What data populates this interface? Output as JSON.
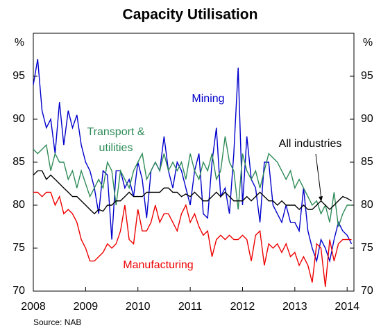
{
  "chart_data": {
    "type": "line",
    "title": "Capacity Utilisation",
    "y_label": "%",
    "source": "Source: NAB",
    "xlim": [
      2008,
      2014.13
    ],
    "xticks": [
      2008,
      2009,
      2010,
      2011,
      2012,
      2013,
      2014
    ],
    "ylim": [
      70,
      100
    ],
    "yticks": [
      70,
      75,
      80,
      85,
      90,
      95
    ],
    "x": [
      2008,
      2008.083,
      2008.167,
      2008.25,
      2008.333,
      2008.417,
      2008.5,
      2008.583,
      2008.667,
      2008.75,
      2008.833,
      2008.917,
      2009,
      2009.083,
      2009.167,
      2009.25,
      2009.333,
      2009.417,
      2009.5,
      2009.583,
      2009.667,
      2009.75,
      2009.833,
      2009.917,
      2010,
      2010.083,
      2010.167,
      2010.25,
      2010.333,
      2010.417,
      2010.5,
      2010.583,
      2010.667,
      2010.75,
      2010.833,
      2010.917,
      2011,
      2011.083,
      2011.167,
      2011.25,
      2011.333,
      2011.417,
      2011.5,
      2011.583,
      2011.667,
      2011.75,
      2011.833,
      2011.917,
      2012,
      2012.083,
      2012.167,
      2012.25,
      2012.333,
      2012.417,
      2012.5,
      2012.583,
      2012.667,
      2012.75,
      2012.833,
      2012.917,
      2013,
      2013.083,
      2013.167,
      2013.25,
      2013.333,
      2013.417,
      2013.5,
      2013.583,
      2013.667,
      2013.75,
      2013.833,
      2013.917,
      2014,
      2014.083
    ],
    "series": [
      {
        "name": "Mining",
        "color": "#0000cc",
        "values": [
          94,
          97,
          91,
          89,
          90,
          86,
          92,
          87,
          91,
          89,
          90.5,
          87,
          85,
          84,
          82,
          79,
          84,
          83.5,
          76,
          84,
          84,
          82,
          83,
          81,
          85,
          83,
          78.5,
          84,
          85,
          84,
          88,
          84,
          82,
          85,
          84,
          82,
          80,
          84,
          86,
          79,
          78.5,
          85,
          89,
          81,
          82,
          79,
          86,
          96,
          80,
          88,
          83,
          82,
          78,
          85,
          85,
          80,
          79,
          78,
          80,
          78,
          78,
          77,
          82,
          77,
          75,
          73.5,
          76,
          75,
          73.5,
          76,
          78,
          77,
          76.5,
          75.5
        ]
      },
      {
        "name": "Transport & utilities",
        "color": "#2e8b57",
        "values": [
          86.5,
          86,
          86.5,
          87,
          84,
          86,
          85,
          85,
          83,
          84,
          82,
          84,
          82.5,
          81,
          82,
          83,
          82,
          85,
          84,
          80,
          84,
          83,
          82,
          84,
          85,
          86,
          83,
          84,
          85,
          84,
          86,
          84,
          85,
          84,
          85,
          83,
          86,
          84,
          83,
          85,
          84,
          86,
          83,
          84,
          88,
          85,
          84,
          79.5,
          86,
          84,
          83,
          84,
          82,
          84,
          86,
          85.5,
          85,
          84,
          83,
          84,
          82,
          83,
          82,
          81,
          80,
          80.5,
          79,
          80,
          78,
          81.5,
          77.5,
          79,
          80,
          80
        ]
      },
      {
        "name": "All industries",
        "color": "#000000",
        "values": [
          83.5,
          84,
          84,
          83,
          83.5,
          83,
          82.5,
          82,
          81.5,
          81,
          81,
          80.5,
          80,
          79.5,
          79,
          79.5,
          79.3,
          80,
          80,
          80.5,
          80.5,
          81,
          81.5,
          81,
          81,
          81,
          81.5,
          81.5,
          81.5,
          81.5,
          82,
          82,
          81.5,
          81.5,
          81,
          81.3,
          81,
          81.5,
          81,
          80.5,
          80.5,
          81,
          81.5,
          81,
          81.5,
          81,
          80.5,
          80.5,
          80.5,
          81,
          80.5,
          81,
          81.5,
          81,
          80.5,
          80.5,
          80,
          80.5,
          80,
          80,
          80,
          79.5,
          80,
          79.5,
          79.5,
          80,
          80.5,
          80,
          79.5,
          80,
          80.5,
          81,
          80.8,
          80.5
        ]
      },
      {
        "name": "Manufacturing",
        "color": "#ee0000",
        "values": [
          81.5,
          81.5,
          81,
          81.5,
          81.5,
          80,
          81,
          79,
          79.5,
          79,
          78,
          76,
          75,
          73.5,
          73.5,
          74,
          74.5,
          75.5,
          75,
          75.5,
          77,
          80,
          76,
          75.5,
          79.5,
          77,
          77,
          78,
          80,
          78,
          79,
          79,
          78,
          77,
          79,
          80,
          78,
          79,
          77.5,
          76.5,
          77,
          74,
          76,
          76.5,
          76,
          76.5,
          76,
          76,
          76.5,
          76,
          73.5,
          76.5,
          77,
          73,
          75.5,
          75,
          75.5,
          74.5,
          75.5,
          74,
          74.5,
          73,
          74,
          73,
          71,
          75.5,
          75,
          70.5,
          76,
          73.5,
          75.5,
          76,
          76,
          76
        ]
      }
    ]
  }
}
